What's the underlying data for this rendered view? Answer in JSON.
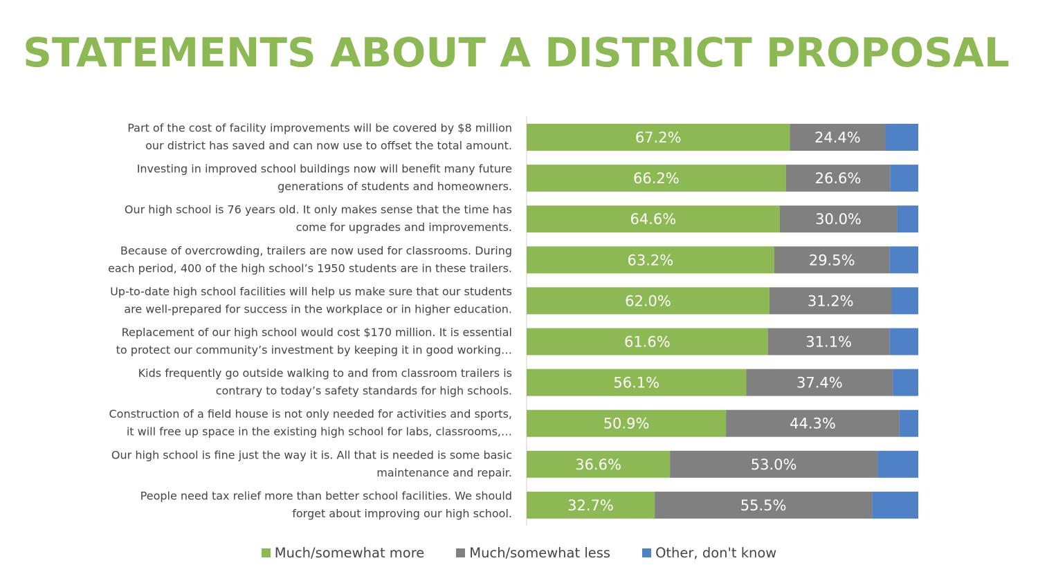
{
  "title": "STATEMENTS ABOUT A DISTRICT PROPOSAL",
  "colors": {
    "title": "#8cb953",
    "more": "#8cb953",
    "less": "#808080",
    "other": "#4f81c7"
  },
  "legend": [
    {
      "label": "Much/somewhat more",
      "color": "#8cb953"
    },
    {
      "label": "Much/somewhat less",
      "color": "#808080"
    },
    {
      "label": "Other, don't know",
      "color": "#4f81c7"
    }
  ],
  "chart_data": {
    "type": "bar",
    "orientation": "horizontal",
    "stacked": true,
    "xlim": [
      0,
      100
    ],
    "categories": [
      [
        "Part of the cost of facility improvements will be covered by $8 million",
        "our district has saved and can now use to offset the total amount."
      ],
      [
        "Investing in improved school buildings now will benefit many future",
        "generations of students and homeowners."
      ],
      [
        "Our high school is 76 years old. It only makes sense that the time has",
        "come for upgrades and improvements."
      ],
      [
        "Because of overcrowding, trailers are now used for classrooms. During",
        "each period, 400 of the high school’s 1950 students are in these trailers."
      ],
      [
        "Up-to-date high school facilities will help us make sure that our students",
        "are well-prepared for success in the workplace or in higher education."
      ],
      [
        "Replacement of our high school would cost $170 million. It is essential",
        "to protect our community’s investment by keeping it in good working…"
      ],
      [
        "Kids frequently go outside walking to and from classroom trailers is",
        "contrary to today’s safety standards for high schools."
      ],
      [
        "Construction of a field house is not only needed for activities and sports,",
        "it will free up space in the existing high school for labs, classrooms,…"
      ],
      [
        "Our high school is fine just the way it is. All that is needed is some basic",
        "maintenance and repair."
      ],
      [
        "People need tax relief more than better school facilities. We should",
        "forget about improving our high school."
      ]
    ],
    "series": [
      {
        "name": "Much/somewhat more",
        "color": "#8cb953",
        "values": [
          67.2,
          66.2,
          64.6,
          63.2,
          62.0,
          61.6,
          56.1,
          50.9,
          36.6,
          32.7
        ],
        "labels": [
          "67.2%",
          "66.2%",
          "64.6%",
          "63.2%",
          "62.0%",
          "61.6%",
          "56.1%",
          "50.9%",
          "36.6%",
          "32.7%"
        ]
      },
      {
        "name": "Much/somewhat less",
        "color": "#808080",
        "values": [
          24.4,
          26.6,
          30.0,
          29.5,
          31.2,
          31.1,
          37.4,
          44.3,
          53.0,
          55.5
        ],
        "labels": [
          "24.4%",
          "26.6%",
          "30.0%",
          "29.5%",
          "31.2%",
          "31.1%",
          "37.4%",
          "44.3%",
          "53.0%",
          "55.5%"
        ]
      },
      {
        "name": "Other, don't know",
        "color": "#4f81c7",
        "values": [
          8.4,
          7.2,
          5.4,
          7.3,
          6.8,
          7.3,
          6.5,
          4.8,
          10.4,
          11.8
        ],
        "labels": []
      }
    ]
  }
}
